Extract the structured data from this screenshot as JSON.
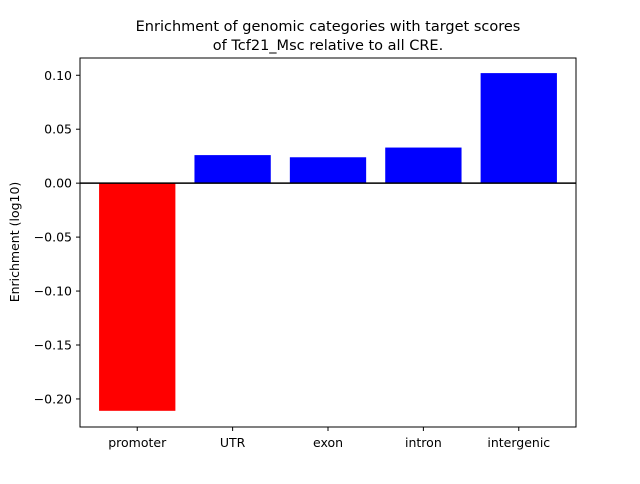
{
  "chart_data": {
    "type": "bar",
    "title": "Enrichment of genomic categories with target scores\nof Tcf21_Msc relative to all CRE.",
    "title_lines": [
      "Enrichment of genomic categories with target scores",
      "of Tcf21_Msc relative to all CRE."
    ],
    "xlabel": "",
    "ylabel": "Enrichment (log10)",
    "categories": [
      "promoter",
      "UTR",
      "exon",
      "intron",
      "intergenic"
    ],
    "values": [
      -0.211,
      0.026,
      0.024,
      0.033,
      0.102
    ],
    "bar_colors": [
      "#ff0000",
      "#0000ff",
      "#0000ff",
      "#0000ff",
      "#0000ff"
    ],
    "ylim": [
      -0.226,
      0.116
    ],
    "yticks": [
      -0.2,
      -0.15,
      -0.1,
      -0.05,
      0.0,
      0.05,
      0.1
    ],
    "ytick_labels": [
      "−0.20",
      "−0.15",
      "−0.10",
      "−0.05",
      "0.00",
      "0.05",
      "0.10"
    ],
    "zero_line": true,
    "grid": false,
    "legend": false
  }
}
